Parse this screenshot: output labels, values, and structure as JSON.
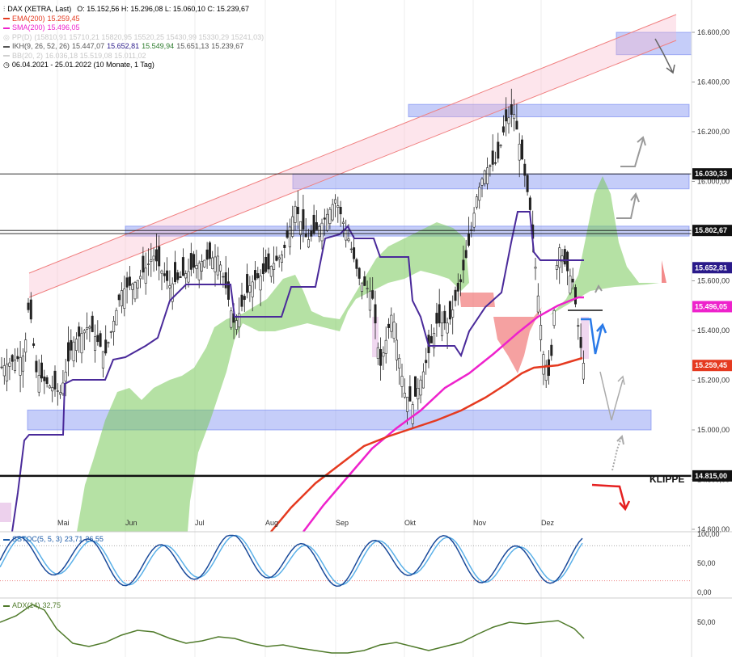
{
  "header": {
    "title": "DAX (XETRA, Last)",
    "ohlc": "O: 15.152,56   H: 15.296,08   L: 15.060,10   C: 15.239,67",
    "ema": {
      "label": "EMA(200)",
      "value": "15.259,45",
      "color": "#e53a20"
    },
    "sma": {
      "label": "SMA(200)",
      "value": "15.496,05",
      "color": "#ee22cc"
    },
    "pp": {
      "label": "PP(D)",
      "values": "(15810,91   15710,21   15820,95   15520,25   15430,99   15330,29   15241,03)",
      "color": "#cfcfcf"
    },
    "ikh": {
      "label": "IKH(9, 26, 52, 26)",
      "v1": "15.447,07",
      "v2": "15.652,81",
      "v3": "15.549,94",
      "v4": "15.651,13",
      "v5": "15.239,67",
      "color": "#555555"
    },
    "bb": {
      "label": "BB(20, 2)",
      "values": "16.036,18   15.519,08   15.011,02",
      "color": "#cfcfcf"
    },
    "range": "06.04.2021 - 25.01.2022   (10 Monate, 1 Tag)"
  },
  "chart_data": {
    "type": "candlestick",
    "y_ticks": [
      "16.600,00",
      "16.400,00",
      "16.200,00",
      "16.000,00",
      "15.800,00",
      "15.600,00",
      "15.400,00",
      "15.200,00",
      "15.000,00",
      "14.800,00",
      "14.600,00"
    ],
    "y_tick_values": [
      16600,
      16400,
      16200,
      16000,
      15800,
      15600,
      15400,
      15200,
      15000,
      14800,
      14600
    ],
    "x_ticks": [
      "Mai",
      "Jun",
      "Jul",
      "Aug",
      "Sep",
      "Okt",
      "Nov",
      "Dez"
    ],
    "ylim": [
      14600,
      16700
    ],
    "price_tags": [
      {
        "value": 16030.33,
        "label": "16.030,33",
        "bg": "#111111",
        "fg": "#ffffff"
      },
      {
        "value": 15802.67,
        "label": "15.802,67",
        "bg": "#111111",
        "fg": "#ffffff"
      },
      {
        "value": 15652.81,
        "label": "15.652,81",
        "bg": "#2a1a8a",
        "fg": "#ffffff"
      },
      {
        "value": 15496.05,
        "label": "15.496,05",
        "bg": "#ee22cc",
        "fg": "#ffffff"
      },
      {
        "value": 15259.45,
        "label": "15.259,45",
        "bg": "#e53a20",
        "fg": "#ffffff"
      },
      {
        "value": 14815.0,
        "label": "14.815,00",
        "bg": "#111111",
        "fg": "#ffffff"
      }
    ],
    "klippe": "KLIPPE",
    "resistance_lines": [
      16030.33,
      15802.67,
      15790,
      14815.0
    ],
    "zones": [
      {
        "from": 16510,
        "to": 16600
      },
      {
        "from": 16260,
        "to": 16310
      },
      {
        "from": 15970,
        "to": 16030
      },
      {
        "from": 15780,
        "to": 15820
      },
      {
        "from": 15000,
        "to": 15080
      }
    ]
  },
  "stoch": {
    "label": "SSTOC(5, 5, 3)",
    "v1": "23,71",
    "v2": "26,55",
    "ticks": [
      "100,00",
      "50,00",
      "0,00"
    ],
    "tick_values": [
      100,
      50,
      0
    ]
  },
  "adx": {
    "label": "ADX(14)",
    "value": "32,75",
    "ticks": [
      "50,00"
    ],
    "tick_values": [
      50
    ]
  }
}
